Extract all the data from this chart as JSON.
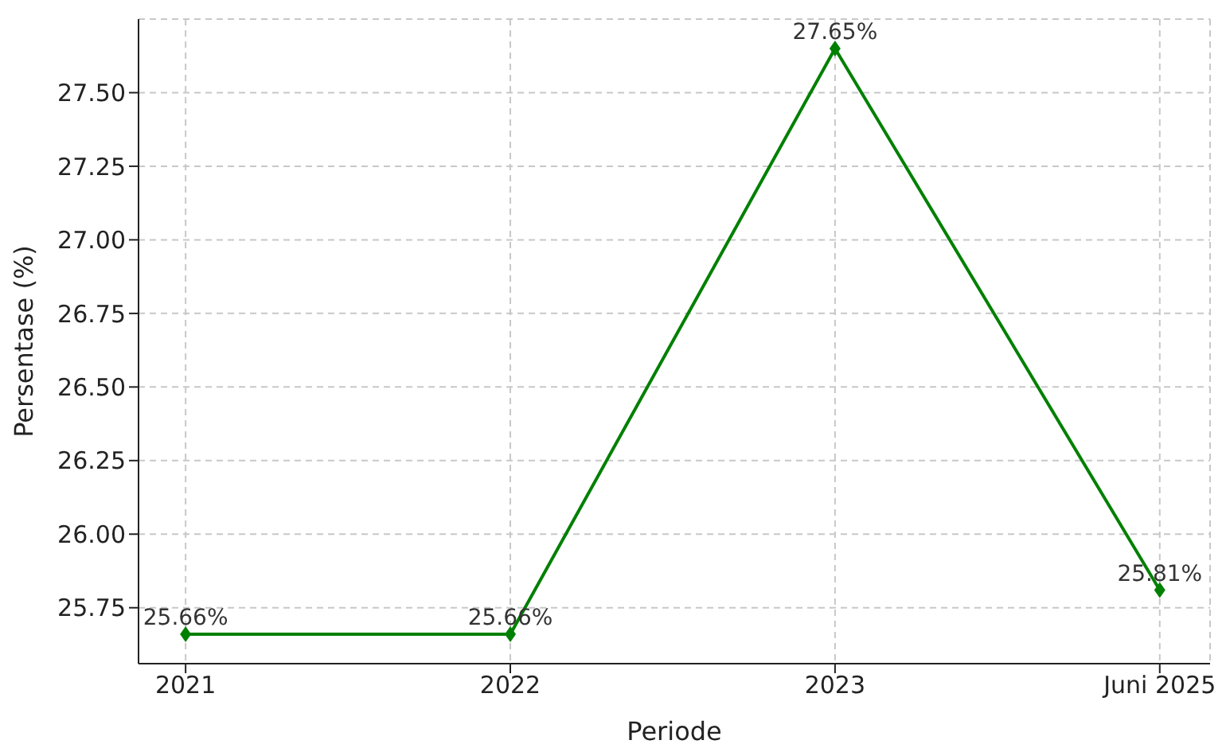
{
  "chart_data": {
    "type": "line",
    "xlabel": "Periode",
    "ylabel": "Persentase (%)",
    "categories": [
      "2021",
      "2022",
      "2023",
      "Juni 2025"
    ],
    "series": [
      {
        "color": "#008000",
        "values": [
          25.66,
          25.66,
          27.65,
          25.81
        ],
        "value_labels": [
          "25.66%",
          "25.66%",
          "27.65%",
          "25.81%"
        ]
      }
    ],
    "ylim": [
      25.56,
      27.75
    ],
    "yticks": [
      {
        "value": 25.75,
        "label": "25.75"
      },
      {
        "value": 26.0,
        "label": "26.00"
      },
      {
        "value": 26.25,
        "label": "26.25"
      },
      {
        "value": 26.5,
        "label": "26.50"
      },
      {
        "value": 26.75,
        "label": "26.75"
      },
      {
        "value": 27.0,
        "label": "27.00"
      },
      {
        "value": 27.25,
        "label": "27.25"
      },
      {
        "value": 27.5,
        "label": "27.50"
      }
    ],
    "grid": true,
    "marker": "diamond",
    "line_style": "solid"
  }
}
